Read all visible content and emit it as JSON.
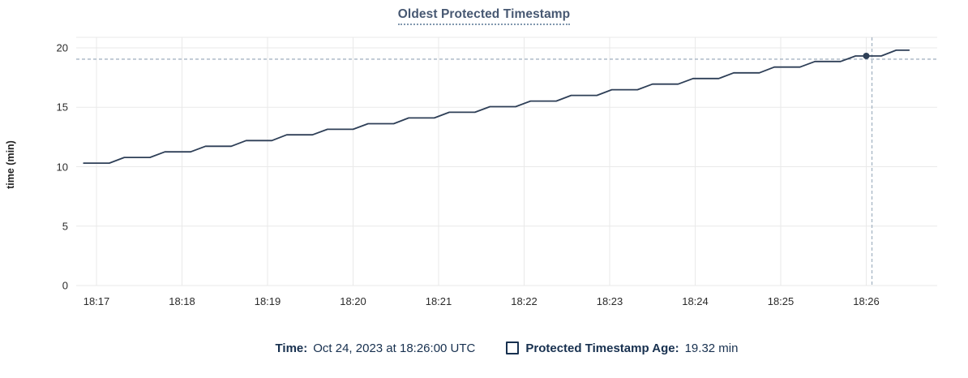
{
  "header": {
    "title": "Oldest Protected Timestamp"
  },
  "chart_data": {
    "type": "line",
    "title": "Oldest Protected Timestamp",
    "xlabel": "",
    "ylabel": "time (min)",
    "ylim": [
      0,
      20
    ],
    "y_ticks": [
      0,
      5,
      10,
      15,
      20
    ],
    "x_unit": "seconds since 18:17:00 UTC",
    "grid": true,
    "legend_position": "bottom",
    "x_ticks": [
      {
        "t": 0,
        "label": "18:17"
      },
      {
        "t": 60,
        "label": "18:18"
      },
      {
        "t": 120,
        "label": "18:19"
      },
      {
        "t": 180,
        "label": "18:20"
      },
      {
        "t": 240,
        "label": "18:21"
      },
      {
        "t": 300,
        "label": "18:22"
      },
      {
        "t": 360,
        "label": "18:23"
      },
      {
        "t": 420,
        "label": "18:24"
      },
      {
        "t": 480,
        "label": "18:25"
      },
      {
        "t": 540,
        "label": "18:26"
      }
    ],
    "series": [
      {
        "name": "Protected Timestamp Age",
        "color": "#2e3f57",
        "points": [
          [
            -9,
            10.3
          ],
          [
            9,
            10.3
          ],
          [
            19.5,
            10.78
          ],
          [
            37.5,
            10.78
          ],
          [
            48,
            11.25
          ],
          [
            66,
            11.25
          ],
          [
            76.5,
            11.72
          ],
          [
            94.5,
            11.72
          ],
          [
            105,
            12.2
          ],
          [
            123,
            12.2
          ],
          [
            133.5,
            12.68
          ],
          [
            151.5,
            12.68
          ],
          [
            162,
            13.15
          ],
          [
            180,
            13.15
          ],
          [
            190.5,
            13.62
          ],
          [
            208.5,
            13.62
          ],
          [
            219,
            14.1
          ],
          [
            237,
            14.1
          ],
          [
            247.5,
            14.58
          ],
          [
            265.5,
            14.58
          ],
          [
            276,
            15.05
          ],
          [
            294,
            15.05
          ],
          [
            304.5,
            15.52
          ],
          [
            322.5,
            15.52
          ],
          [
            333,
            16.0
          ],
          [
            351,
            16.0
          ],
          [
            361.5,
            16.48
          ],
          [
            379.5,
            16.48
          ],
          [
            390,
            16.95
          ],
          [
            408,
            16.95
          ],
          [
            418.5,
            17.42
          ],
          [
            436.5,
            17.42
          ],
          [
            447,
            17.9
          ],
          [
            465,
            17.9
          ],
          [
            475.5,
            18.38
          ],
          [
            493.5,
            18.38
          ],
          [
            504,
            18.85
          ],
          [
            522,
            18.85
          ],
          [
            532.5,
            19.32
          ],
          [
            550.5,
            19.32
          ],
          [
            561,
            19.8
          ],
          [
            570,
            19.8
          ]
        ]
      }
    ],
    "hovered_point": {
      "t": 540,
      "v": 19.32,
      "time": "18:26:00",
      "value_label": "19.32 min"
    },
    "cursor": {
      "t": 544,
      "v": 19.05
    }
  },
  "footer": {
    "time_label": "Time:",
    "time_value": "Oct 24, 2023 at 18:26:00 UTC",
    "series_label": "Protected Timestamp Age:",
    "series_value": "19.32 min"
  },
  "colors": {
    "series_line": "#2e3f57",
    "grid": "#e9e9e9",
    "crosshair": "#a6b5c4",
    "title_text": "#475872",
    "footer_text": "#17304f",
    "axis_text": "#2b2b2b",
    "background": "#ffffff"
  }
}
